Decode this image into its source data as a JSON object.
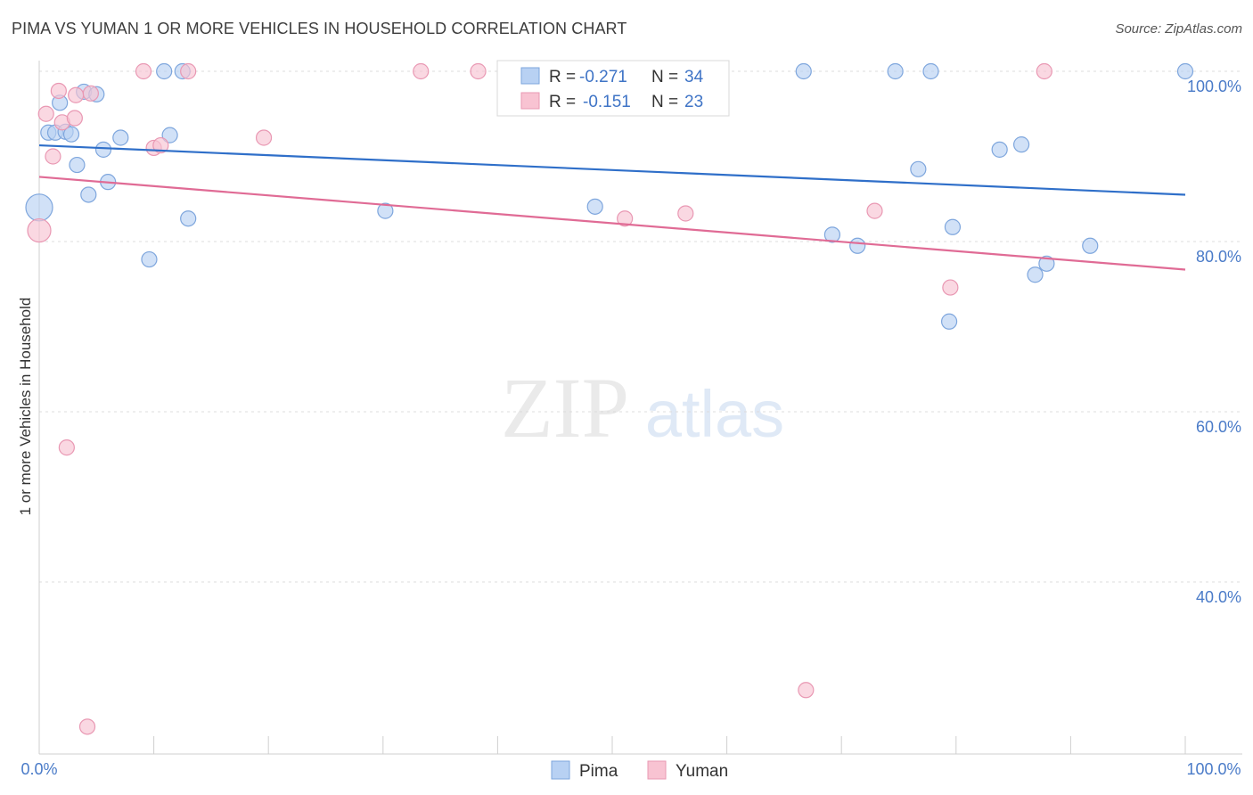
{
  "title": "PIMA VS YUMAN 1 OR MORE VEHICLES IN HOUSEHOLD CORRELATION CHART",
  "source": "Source: ZipAtlas.com",
  "watermark": {
    "zip": "ZIP",
    "atlas": "atlas"
  },
  "colors": {
    "pima_fill": "#b8d1f3",
    "pima_stroke": "#7ea6dd",
    "pima_line": "#2f6fc9",
    "yuman_fill": "#f8c3d2",
    "yuman_stroke": "#e998b3",
    "yuman_line": "#e06b95",
    "tick": "#4a7bc8",
    "grid": "#dcdcdc"
  },
  "legend": {
    "rows": [
      {
        "r_label": "R = ",
        "r_value": "-0.271",
        "n_label": "N = ",
        "n_value": "34"
      },
      {
        "r_label": "R = ",
        "r_value": "-0.151",
        "n_label": "N = ",
        "n_value": "23"
      }
    ]
  },
  "bottom_legend": [
    "Pima",
    "Yuman"
  ],
  "chart_data": {
    "type": "scatter",
    "xlabel": "",
    "ylabel": "1 or more Vehicles in Household",
    "xlim": [
      0,
      100
    ],
    "ylim": [
      20,
      102
    ],
    "x_tick_labels": [
      "0.0%",
      "100.0%"
    ],
    "y_ticks": [
      40,
      60,
      80,
      100
    ],
    "y_tick_labels": [
      "40.0%",
      "60.0%",
      "80.0%",
      "100.0%"
    ],
    "grid": true,
    "legend_position": "top-center",
    "series": [
      {
        "name": "Pima",
        "r": -0.271,
        "n": 34,
        "trend": [
          [
            0,
            91.3
          ],
          [
            100,
            85.5
          ]
        ],
        "points": [
          {
            "x": 0.0,
            "y": 84.0,
            "s": 3
          },
          {
            "x": 0.8,
            "y": 92.8,
            "s": 1
          },
          {
            "x": 1.4,
            "y": 92.8,
            "s": 1
          },
          {
            "x": 1.8,
            "y": 96.3,
            "s": 1
          },
          {
            "x": 2.3,
            "y": 92.9,
            "s": 1
          },
          {
            "x": 2.8,
            "y": 92.6,
            "s": 1
          },
          {
            "x": 3.3,
            "y": 89.0,
            "s": 1
          },
          {
            "x": 3.9,
            "y": 97.6,
            "s": 1
          },
          {
            "x": 4.3,
            "y": 85.5,
            "s": 1
          },
          {
            "x": 5.0,
            "y": 97.3,
            "s": 1
          },
          {
            "x": 5.6,
            "y": 90.8,
            "s": 1
          },
          {
            "x": 6.0,
            "y": 87.0,
            "s": 1
          },
          {
            "x": 7.1,
            "y": 92.2,
            "s": 1
          },
          {
            "x": 9.6,
            "y": 77.9,
            "s": 1
          },
          {
            "x": 10.9,
            "y": 100.0,
            "s": 1
          },
          {
            "x": 11.4,
            "y": 92.5,
            "s": 1
          },
          {
            "x": 12.5,
            "y": 100.0,
            "s": 1
          },
          {
            "x": 13.0,
            "y": 82.7,
            "s": 1
          },
          {
            "x": 30.2,
            "y": 83.6,
            "s": 1
          },
          {
            "x": 48.5,
            "y": 84.1,
            "s": 1
          },
          {
            "x": 66.7,
            "y": 100.0,
            "s": 1
          },
          {
            "x": 69.2,
            "y": 80.8,
            "s": 1
          },
          {
            "x": 71.4,
            "y": 79.5,
            "s": 1
          },
          {
            "x": 74.7,
            "y": 100.0,
            "s": 1
          },
          {
            "x": 76.7,
            "y": 88.5,
            "s": 1
          },
          {
            "x": 77.8,
            "y": 100.0,
            "s": 1
          },
          {
            "x": 79.4,
            "y": 70.6,
            "s": 1
          },
          {
            "x": 79.7,
            "y": 81.7,
            "s": 1
          },
          {
            "x": 83.8,
            "y": 90.8,
            "s": 1
          },
          {
            "x": 85.7,
            "y": 91.4,
            "s": 1
          },
          {
            "x": 86.9,
            "y": 76.1,
            "s": 1
          },
          {
            "x": 87.9,
            "y": 77.4,
            "s": 1
          },
          {
            "x": 91.7,
            "y": 79.5,
            "s": 1
          },
          {
            "x": 100.0,
            "y": 100.0,
            "s": 1
          }
        ]
      },
      {
        "name": "Yuman",
        "r": -0.151,
        "n": 23,
        "trend": [
          [
            0,
            87.6
          ],
          [
            100,
            76.7
          ]
        ],
        "points": [
          {
            "x": 0.0,
            "y": 81.3,
            "s": 2
          },
          {
            "x": 0.6,
            "y": 95.0,
            "s": 1
          },
          {
            "x": 1.2,
            "y": 90.0,
            "s": 1
          },
          {
            "x": 1.7,
            "y": 97.7,
            "s": 1
          },
          {
            "x": 2.0,
            "y": 94.0,
            "s": 1
          },
          {
            "x": 2.4,
            "y": 55.8,
            "s": 1
          },
          {
            "x": 3.1,
            "y": 94.5,
            "s": 1
          },
          {
            "x": 3.2,
            "y": 97.2,
            "s": 1
          },
          {
            "x": 4.2,
            "y": 23.0,
            "s": 1
          },
          {
            "x": 4.5,
            "y": 97.4,
            "s": 1
          },
          {
            "x": 9.1,
            "y": 100.0,
            "s": 1
          },
          {
            "x": 10.0,
            "y": 91.0,
            "s": 1
          },
          {
            "x": 10.6,
            "y": 91.3,
            "s": 1
          },
          {
            "x": 13.0,
            "y": 100.0,
            "s": 1
          },
          {
            "x": 19.6,
            "y": 92.2,
            "s": 1
          },
          {
            "x": 33.3,
            "y": 100.0,
            "s": 1
          },
          {
            "x": 38.3,
            "y": 100.0,
            "s": 1
          },
          {
            "x": 51.1,
            "y": 82.7,
            "s": 1
          },
          {
            "x": 56.4,
            "y": 83.3,
            "s": 1
          },
          {
            "x": 66.9,
            "y": 27.3,
            "s": 1
          },
          {
            "x": 72.9,
            "y": 83.6,
            "s": 1
          },
          {
            "x": 79.5,
            "y": 74.6,
            "s": 1
          },
          {
            "x": 87.7,
            "y": 100.0,
            "s": 1
          }
        ]
      }
    ]
  }
}
